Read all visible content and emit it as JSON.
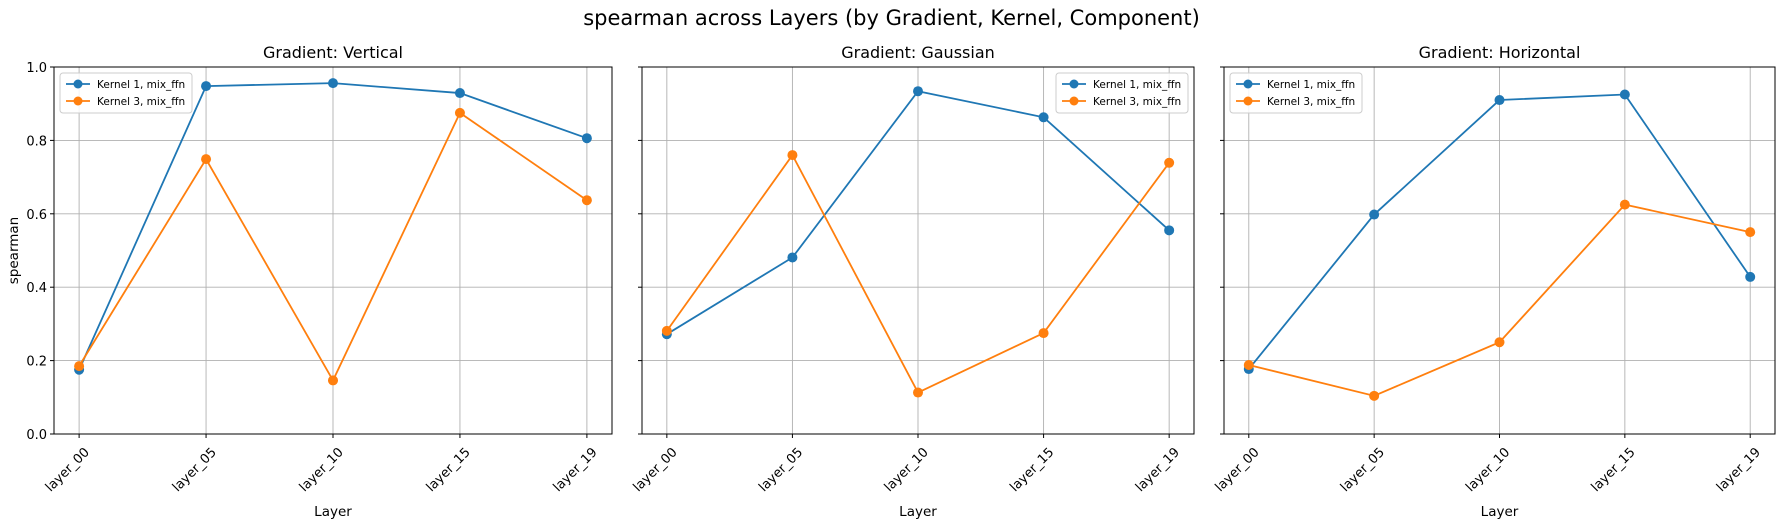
{
  "figure": {
    "title": "spearman across Layers (by Gradient, Kernel, Component)"
  },
  "chart_data": [
    {
      "type": "line",
      "title": "Gradient: Vertical",
      "xlabel": "Layer",
      "ylabel": "spearman",
      "categories": [
        "layer_00",
        "layer_05",
        "layer_10",
        "layer_15",
        "layer_19"
      ],
      "ylim": [
        0,
        1.0
      ],
      "yticks": [
        "0.0",
        "0.2",
        "0.4",
        "0.6",
        "0.8",
        "1.0"
      ],
      "grid": true,
      "legend_position": "upper-left",
      "series": [
        {
          "name": "Kernel 1, mix_ffn",
          "color": "#1f77b4",
          "values": [
            0.175,
            0.948,
            0.956,
            0.929,
            0.806
          ]
        },
        {
          "name": "Kernel 3, mix_ffn",
          "color": "#ff7f0e",
          "values": [
            0.185,
            0.749,
            0.146,
            0.875,
            0.637
          ]
        }
      ]
    },
    {
      "type": "line",
      "title": "Gradient: Gaussian",
      "xlabel": "Layer",
      "ylabel": "",
      "categories": [
        "layer_00",
        "layer_05",
        "layer_10",
        "layer_15",
        "layer_19"
      ],
      "ylim": [
        0,
        1.0
      ],
      "yticks": [
        "",
        "",
        "",
        "",
        "",
        ""
      ],
      "grid": true,
      "legend_position": "upper-right",
      "series": [
        {
          "name": "Kernel 1, mix_ffn",
          "color": "#1f77b4",
          "values": [
            0.272,
            0.481,
            0.934,
            0.863,
            0.555
          ]
        },
        {
          "name": "Kernel 3, mix_ffn",
          "color": "#ff7f0e",
          "values": [
            0.281,
            0.76,
            0.113,
            0.275,
            0.739
          ]
        }
      ]
    },
    {
      "type": "line",
      "title": "Gradient: Horizontal",
      "xlabel": "Layer",
      "ylabel": "",
      "categories": [
        "layer_00",
        "layer_05",
        "layer_10",
        "layer_15",
        "layer_19"
      ],
      "ylim": [
        0,
        1.0
      ],
      "yticks": [
        "",
        "",
        "",
        "",
        "",
        ""
      ],
      "grid": true,
      "legend_position": "upper-left",
      "series": [
        {
          "name": "Kernel 1, mix_ffn",
          "color": "#1f77b4",
          "values": [
            0.177,
            0.598,
            0.91,
            0.925,
            0.428
          ]
        },
        {
          "name": "Kernel 3, mix_ffn",
          "color": "#ff7f0e",
          "values": [
            0.188,
            0.104,
            0.25,
            0.625,
            0.55
          ]
        }
      ]
    }
  ]
}
